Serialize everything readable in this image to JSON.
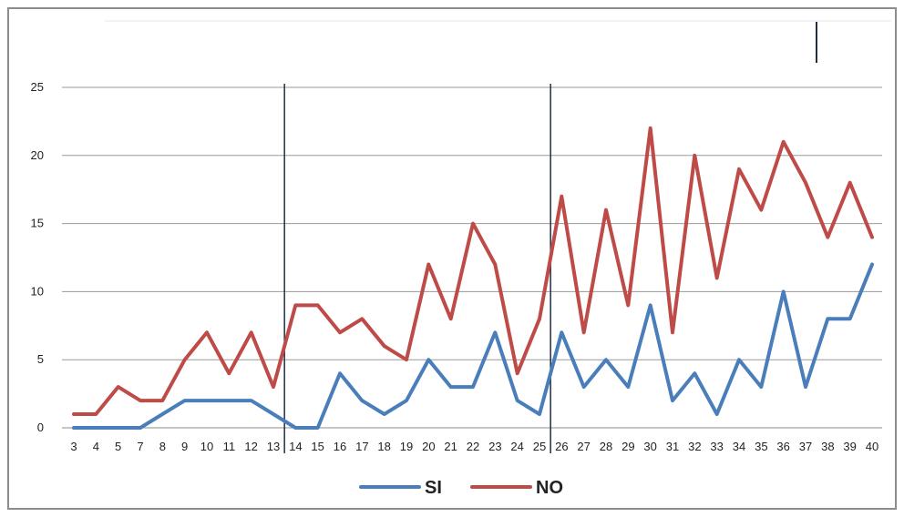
{
  "chart_data": {
    "type": "line",
    "title": "",
    "xlabel": "",
    "ylabel": "",
    "categories": [
      "3",
      "4",
      "5",
      "7",
      "8",
      "9",
      "10",
      "11",
      "12",
      "13",
      "14",
      "15",
      "16",
      "17",
      "18",
      "19",
      "20",
      "21",
      "22",
      "23",
      "24",
      "25",
      "26",
      "27",
      "28",
      "29",
      "30",
      "31",
      "32",
      "33",
      "34",
      "35",
      "36",
      "37",
      "38",
      "39",
      "40"
    ],
    "ylim": [
      0,
      25
    ],
    "yticks": [
      0,
      5,
      10,
      15,
      20,
      25
    ],
    "grid": true,
    "legend": "bottom",
    "series": [
      {
        "name": "SI",
        "color": "#4a7ebb",
        "values": [
          0,
          0,
          0,
          0,
          1,
          2,
          2,
          2,
          2,
          1,
          0,
          0,
          4,
          2,
          1,
          2,
          5,
          3,
          3,
          7,
          2,
          1,
          7,
          3,
          5,
          3,
          9,
          2,
          4,
          1,
          5,
          3,
          10,
          3,
          8,
          8,
          12
        ]
      },
      {
        "name": "NO",
        "color": "#be4b48",
        "values": [
          1,
          1,
          3,
          2,
          2,
          5,
          7,
          4,
          7,
          3,
          9,
          9,
          7,
          8,
          6,
          5,
          12,
          8,
          15,
          12,
          4,
          8,
          17,
          7,
          16,
          9,
          22,
          7,
          20,
          11,
          19,
          16,
          21,
          18,
          14,
          18,
          14
        ]
      }
    ],
    "vertical_markers_after_category": [
      "13",
      "25"
    ]
  }
}
